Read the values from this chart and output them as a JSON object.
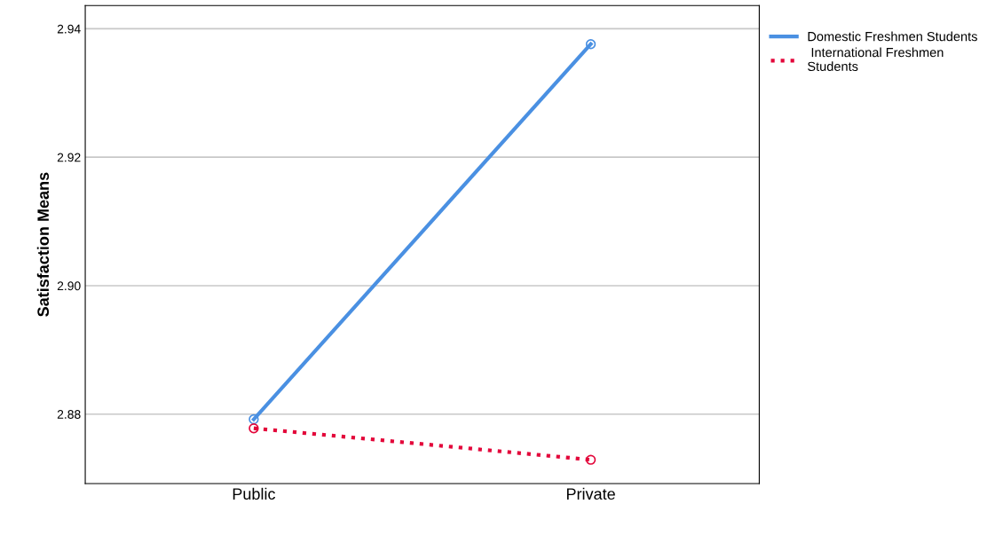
{
  "chart_data": {
    "type": "line",
    "ylabel": "Satisfaction Means",
    "categories": [
      "Public",
      "Private"
    ],
    "series": [
      {
        "name": "Domestic Freshmen Students",
        "color": "#4a90e2",
        "values": [
          2.8792,
          2.9376
        ],
        "line_style": "solid"
      },
      {
        "name": " International Freshmen\nStudents",
        "color": "#e3063a",
        "values": [
          2.8778,
          2.8729
        ],
        "line_style": "dotted"
      }
    ],
    "ylim": [
      2.8692,
      2.9436
    ],
    "yticks": [
      {
        "value": 2.88,
        "label": "2.88"
      },
      {
        "value": 2.9,
        "label": "2.90"
      },
      {
        "value": 2.92,
        "label": "2.92"
      },
      {
        "value": 2.94,
        "label": "2.94"
      }
    ],
    "grid": "y",
    "legend": "top right",
    "marker": "circle"
  }
}
